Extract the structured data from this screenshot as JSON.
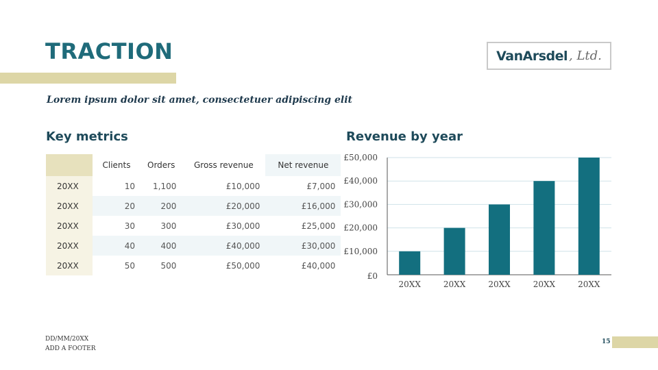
{
  "slide": {
    "title": "TRACTION",
    "subtitle": "Lorem ipsum dolor sit amet, consectetuer adipiscing elit",
    "logo": {
      "strong": "VanArsdel",
      "rest": ", Ltd."
    },
    "colors": {
      "accent": "#1f6b7a",
      "gold": "#ddd6a6",
      "bar": "#136f7f"
    }
  },
  "metrics": {
    "heading": "Key metrics",
    "columns": [
      "",
      "Clients",
      "Orders",
      "Gross revenue",
      "Net revenue"
    ],
    "rows": [
      [
        "20XX",
        "10",
        "1,100",
        "£10,000",
        "£7,000"
      ],
      [
        "20XX",
        "20",
        "200",
        "£20,000",
        "£16,000"
      ],
      [
        "20XX",
        "30",
        "300",
        "£30,000",
        "£25,000"
      ],
      [
        "20XX",
        "40",
        "400",
        "£40,000",
        "£30,000"
      ],
      [
        "20XX",
        "50",
        "500",
        "£50,000",
        "£40,000"
      ]
    ]
  },
  "chart_data": {
    "type": "bar",
    "title": "Revenue by year",
    "categories": [
      "20XX",
      "20XX",
      "20XX",
      "20XX",
      "20XX"
    ],
    "values": [
      10000,
      20000,
      30000,
      40000,
      50000
    ],
    "ylim": [
      0,
      50000
    ],
    "yticks": [
      0,
      10000,
      20000,
      30000,
      40000,
      50000
    ],
    "ytick_labels": [
      "£0",
      "£10,000",
      "£20,000",
      "£30,000",
      "£40,000",
      "£50,000"
    ],
    "grid": true,
    "legend": "none"
  },
  "footer": {
    "date": "DD/MM/20XX",
    "text": "ADD A FOOTER",
    "page": "15"
  }
}
